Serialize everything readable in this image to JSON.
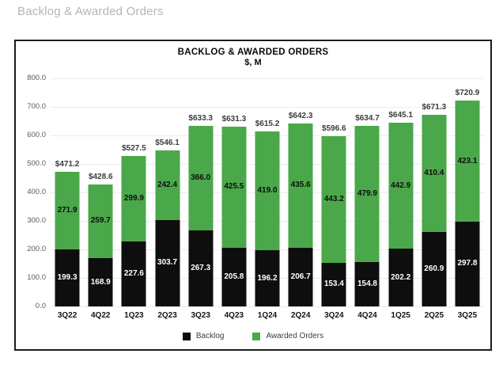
{
  "page": {
    "title": "Backlog & Awarded Orders"
  },
  "chart": {
    "title": "BACKLOG & AWARDED ORDERS",
    "subtitle": "$, M"
  },
  "chart_data": {
    "type": "bar",
    "stacked": true,
    "title": "BACKLOG & AWARDED ORDERS",
    "subtitle": "$, M",
    "categories": [
      "3Q22",
      "4Q22",
      "1Q23",
      "2Q23",
      "3Q23",
      "4Q23",
      "1Q24",
      "2Q24",
      "3Q24",
      "4Q24",
      "1Q25",
      "2Q25",
      "3Q25"
    ],
    "series": [
      {
        "name": "Backlog",
        "color": "#0e0e0e",
        "label_color": "#ffffff",
        "values": [
          199.3,
          168.9,
          227.6,
          303.7,
          267.3,
          205.8,
          196.2,
          206.7,
          153.4,
          154.8,
          202.2,
          260.9,
          297.8
        ]
      },
      {
        "name": "Awarded Orders",
        "color": "#4aa84a",
        "label_color": "#0e0e0e",
        "values": [
          271.9,
          259.7,
          299.9,
          242.4,
          366.0,
          425.5,
          419.0,
          435.6,
          443.2,
          479.9,
          442.9,
          410.4,
          423.1
        ]
      }
    ],
    "total_labels": [
      "$471.2",
      "$428.6",
      "$527.5",
      "$546.1",
      "$633.3",
      "$631.3",
      "$615.2",
      "$642.3",
      "$596.6",
      "$634.7",
      "$645.1",
      "$671.3",
      "$720.9"
    ],
    "ylim": [
      0,
      800
    ],
    "ytick_step": 100,
    "ytick_labels": [
      "0.0",
      "100.0",
      "200.0",
      "300.0",
      "400.0",
      "500.0",
      "600.0",
      "700.0",
      "800.0"
    ],
    "grid": true,
    "legend_position": "bottom"
  }
}
